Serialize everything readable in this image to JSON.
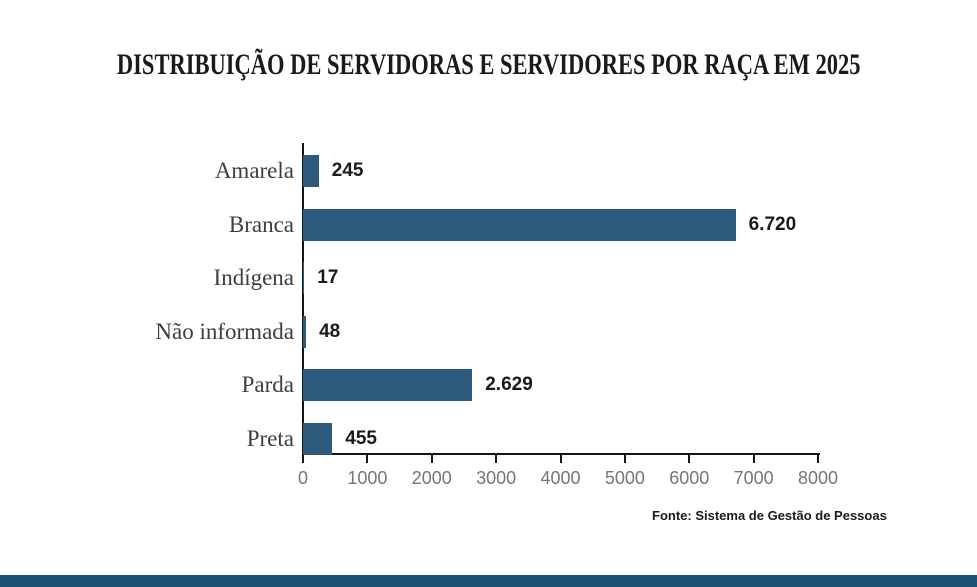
{
  "title": "DISTRIBUIÇÃO DE SERVIDORAS E SERVIDORES POR RAÇA EM 2025",
  "source": "Fonte: Sistema de Gestão de Pessoas",
  "colors": {
    "bar": "#2E5B7B",
    "footer_strip": "#1D4F70",
    "axis": "#151515",
    "tick_label": "#767676",
    "category_label": "#3D3D3D",
    "title_text": "#1A1A1A",
    "value_label": "#1A1A1A",
    "background": "#FFFFFF"
  },
  "chart_data": {
    "type": "bar",
    "orientation": "horizontal",
    "title": "DISTRIBUIÇÃO DE SERVIDORAS E SERVIDORES POR RAÇA EM 2025",
    "categories": [
      "Amarela",
      "Branca",
      "Indígena",
      "Não informada",
      "Parda",
      "Preta"
    ],
    "values": [
      245,
      6720,
      17,
      48,
      2629,
      455
    ],
    "value_labels": [
      "245",
      "6.720",
      "17",
      "48",
      "2.629",
      "455"
    ],
    "xlabel": "",
    "ylabel": "",
    "xlim": [
      0,
      8000
    ],
    "x_ticks": [
      0,
      1000,
      2000,
      3000,
      4000,
      5000,
      6000,
      7000,
      8000
    ],
    "grid": false,
    "legend": null,
    "source": "Fonte: Sistema de Gestão de Pessoas"
  }
}
